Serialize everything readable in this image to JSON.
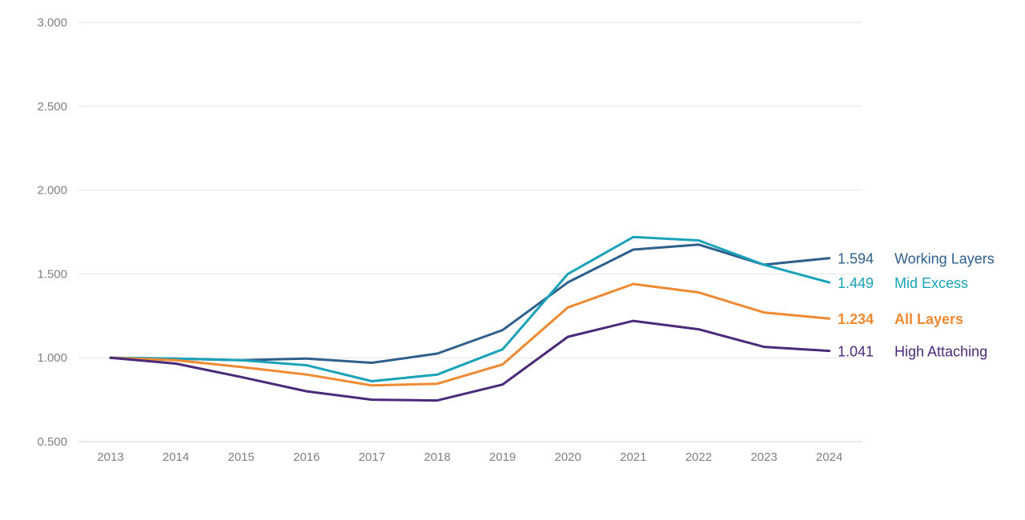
{
  "chart_data": {
    "type": "line",
    "title": "",
    "xlabel": "",
    "ylabel": "",
    "x": [
      "2013",
      "2014",
      "2015",
      "2016",
      "2017",
      "2018",
      "2019",
      "2020",
      "2021",
      "2022",
      "2023",
      "2024"
    ],
    "ylim": [
      0.5,
      3.0
    ],
    "y_ticks": [
      "0.500",
      "1.000",
      "1.500",
      "2.000",
      "2.500",
      "3.000"
    ],
    "grid": "horizontal",
    "legend": "inline-right",
    "series": [
      {
        "name": "Working Layers",
        "color": "#2f5f8c",
        "end_label": "1.594",
        "bold": false,
        "values": [
          1.0,
          0.995,
          0.985,
          0.995,
          0.97,
          1.025,
          1.165,
          1.45,
          1.645,
          1.675,
          1.555,
          1.594
        ]
      },
      {
        "name": "Mid Excess",
        "color": "#1aa3b8",
        "end_label": "1.449",
        "bold": false,
        "values": [
          1.0,
          0.995,
          0.985,
          0.955,
          0.86,
          0.9,
          1.05,
          1.5,
          1.72,
          1.7,
          1.555,
          1.449
        ]
      },
      {
        "name": "All Layers",
        "color": "#ef8a33",
        "end_label": "1.234",
        "bold": true,
        "values": [
          1.0,
          0.985,
          0.945,
          0.9,
          0.835,
          0.845,
          0.96,
          1.3,
          1.44,
          1.39,
          1.27,
          1.234
        ]
      },
      {
        "name": "High Attaching",
        "color": "#4b2a7a",
        "end_label": "1.041",
        "bold": false,
        "values": [
          1.0,
          0.965,
          0.885,
          0.8,
          0.75,
          0.745,
          0.84,
          1.125,
          1.22,
          1.17,
          1.065,
          1.041
        ]
      }
    ]
  }
}
